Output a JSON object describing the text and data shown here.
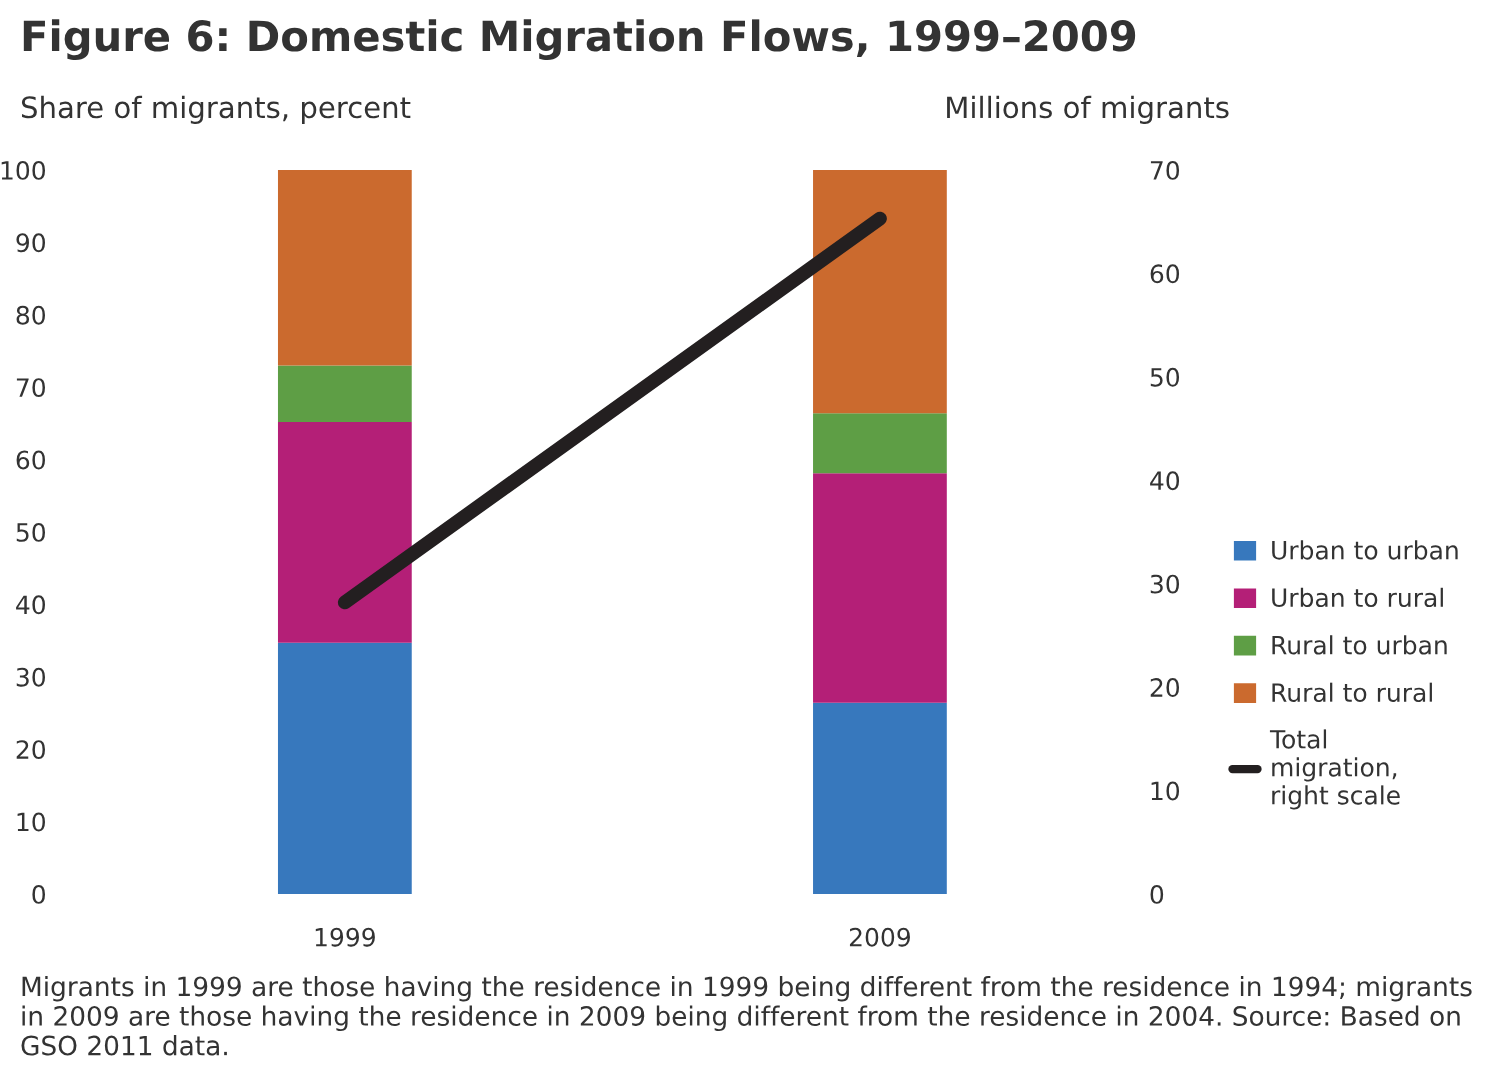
{
  "chart_data": {
    "type": "bar",
    "stacked": true,
    "title": "Figure 6: Domestic Migration Flows, 1999–2009",
    "ylabel": "Share of migrants, percent",
    "y2label": "Millions of migrants",
    "categories": [
      "1999",
      "2009"
    ],
    "series": [
      {
        "name": "Urban to urban",
        "color": "#3778bd",
        "values": [
          34.7,
          26.4
        ]
      },
      {
        "name": "Urban to rural",
        "color": "#b41f77",
        "values": [
          30.5,
          31.7
        ]
      },
      {
        "name": "Rural to urban",
        "color": "#5e9e45",
        "values": [
          7.8,
          8.3
        ]
      },
      {
        "name": "Rural to rural",
        "color": "#cb6a2e",
        "values": [
          27.0,
          33.6
        ]
      },
      {
        "name": "Total\nmigration,\nright scale",
        "type": "line",
        "axis": "y2",
        "color": "#231f20",
        "values": [
          28.2,
          65.3
        ]
      }
    ],
    "ylim": [
      0,
      100
    ],
    "yticks": [
      0,
      10,
      20,
      30,
      40,
      50,
      60,
      70,
      80,
      90,
      100
    ],
    "y2lim": [
      0,
      70
    ],
    "y2ticks": [
      0,
      10,
      20,
      30,
      40,
      50,
      60,
      70
    ],
    "legend": "right",
    "grid": false,
    "annotations": [
      "Migrants in 1999 are those having the residence in 1999 being different from the residence in 1994; migrants in 2009 are those having the residence in 2009 being different from the residence in 2004. Source: Based on GSO 2011 data."
    ]
  }
}
